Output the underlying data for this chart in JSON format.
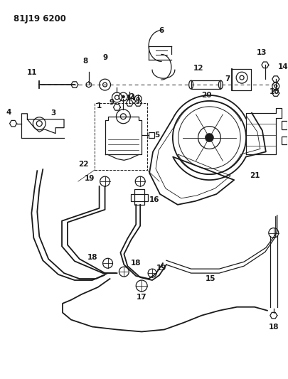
{
  "title": "81J19 6200",
  "bg_color": "#ffffff",
  "line_color": "#1a1a1a",
  "figsize": [
    4.06,
    5.33
  ],
  "dpi": 100
}
